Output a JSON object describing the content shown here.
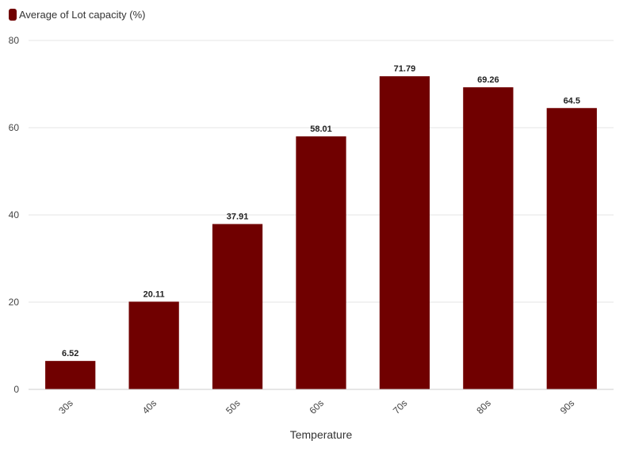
{
  "legend": {
    "label": "Average of Lot capacity (%)"
  },
  "colors": {
    "bar": "#700000",
    "grid": "#e6e6e6",
    "axis": "#cccccc"
  },
  "chart_data": {
    "type": "bar",
    "categories": [
      "30s",
      "40s",
      "50s",
      "60s",
      "70s",
      "80s",
      "90s"
    ],
    "series": [
      {
        "name": "Average of Lot capacity (%)",
        "values": [
          6.52,
          20.11,
          37.91,
          58.01,
          71.79,
          69.26,
          64.5
        ]
      }
    ],
    "value_labels": [
      "6.52",
      "20.11",
      "37.91",
      "58.01",
      "71.79",
      "69.26",
      "64.5"
    ],
    "xlabel": "Temperature",
    "ylabel": "",
    "ylim": [
      0,
      80
    ],
    "yticks": [
      0,
      20,
      40,
      60,
      80
    ],
    "grid": true,
    "legend_position": "top-left"
  }
}
